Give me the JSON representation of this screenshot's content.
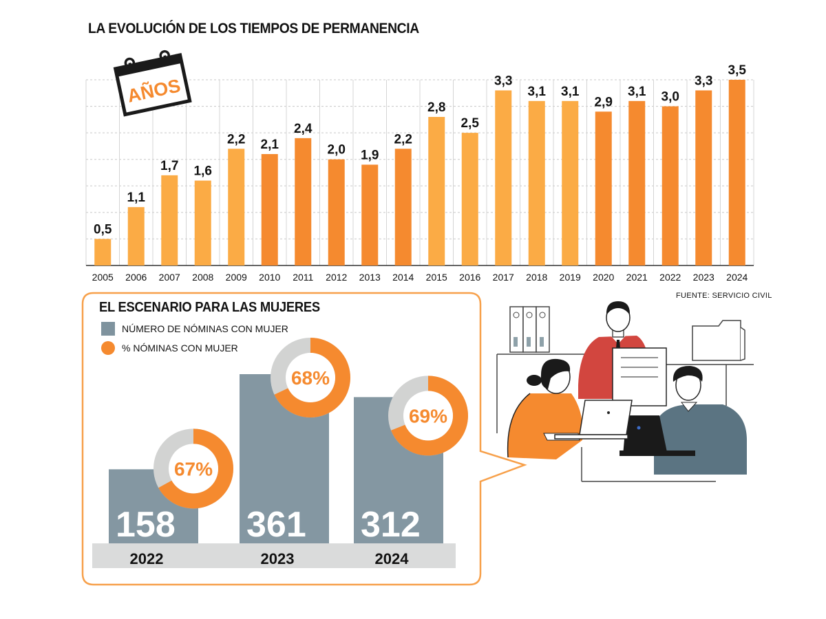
{
  "title": "LA EVOLUCIÓN DE LOS TIEMPOS DE PERMANENCIA",
  "calendar_label": "AÑOS",
  "source": "FUENTE: SERVICIO CIVIL",
  "colors": {
    "light_orange": "#fbab45",
    "dark_orange": "#f58a2f",
    "slate": "#7f939e",
    "ring_grey": "#d2d3d2",
    "band_grey": "#dadbdb",
    "panel_border": "#f7a04a"
  },
  "chart_data": [
    {
      "type": "bar",
      "title": "LA EVOLUCIÓN DE LOS TIEMPOS DE PERMANENCIA",
      "categories": [
        "2005",
        "2006",
        "2007",
        "2008",
        "2009",
        "2010",
        "2011",
        "2012",
        "2013",
        "2014",
        "2015",
        "2016",
        "2017",
        "2018",
        "2019",
        "2020",
        "2021",
        "2022",
        "2023",
        "2024"
      ],
      "values": [
        0.5,
        1.1,
        1.7,
        1.6,
        2.2,
        2.1,
        2.4,
        2.0,
        1.9,
        2.2,
        2.8,
        2.5,
        3.3,
        3.1,
        3.1,
        2.9,
        3.1,
        3.0,
        3.3,
        3.5
      ],
      "value_labels": [
        "0,5",
        "1,1",
        "1,7",
        "1,6",
        "2,2",
        "2,1",
        "2,4",
        "2,0",
        "1,9",
        "2,2",
        "2,8",
        "2,5",
        "3,3",
        "3,1",
        "3,1",
        "2,9",
        "3,1",
        "3,0",
        "3,3",
        "3,5"
      ],
      "bar_colors": [
        "#fbab45",
        "#fbab45",
        "#fbab45",
        "#fbab45",
        "#fbab45",
        "#f58a2f",
        "#f58a2f",
        "#f58a2f",
        "#f58a2f",
        "#f58a2f",
        "#fbab45",
        "#fbab45",
        "#fbab45",
        "#fbab45",
        "#fbab45",
        "#f58a2f",
        "#f58a2f",
        "#f58a2f",
        "#f58a2f",
        "#f58a2f"
      ],
      "ylim": [
        0,
        3.5
      ],
      "grid": true,
      "xlabel": "",
      "ylabel": ""
    },
    {
      "type": "bar",
      "title": "EL ESCENARIO PARA LAS MUJERES",
      "categories": [
        "2022",
        "2023",
        "2024"
      ],
      "series": [
        {
          "name": "NÚMERO DE NÓMINAS CON MUJER",
          "values": [
            158,
            361,
            312
          ],
          "labels": [
            "158",
            "361",
            "312"
          ]
        },
        {
          "name": "% NÓMINAS CON MUJER",
          "values": [
            67,
            68,
            69
          ],
          "labels": [
            "67%",
            "68%",
            "69%"
          ]
        }
      ],
      "legend": "top-left"
    }
  ]
}
